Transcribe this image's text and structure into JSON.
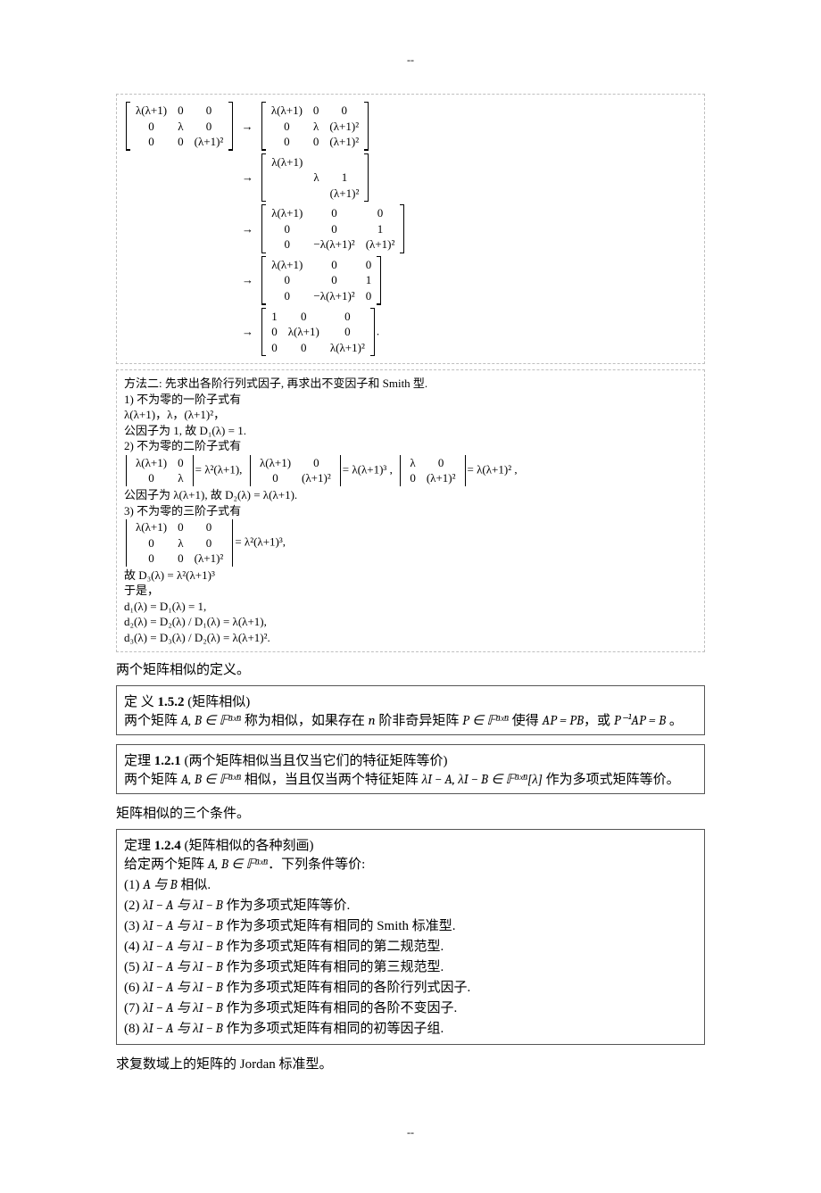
{
  "dash": "--",
  "matbox": {
    "row1": {
      "m1_r1c1": "λ(λ+1)",
      "m1_r1c2": "0",
      "m1_r1c3": "0",
      "m1_r2c1": "0",
      "m1_r2c2": "λ",
      "m1_r2c3": "0",
      "m1_r3c1": "0",
      "m1_r3c2": "0",
      "m1_r3c3": "(λ+1)²",
      "m2_r1c1": "λ(λ+1)",
      "m2_r1c2": "0",
      "m2_r1c3": "0",
      "m2_r2c1": "0",
      "m2_r2c2": "λ",
      "m2_r2c3": "(λ+1)²",
      "m2_r3c1": "0",
      "m2_r3c2": "0",
      "m2_r3c3": "(λ+1)²"
    },
    "row2": {
      "r1c1": "λ(λ+1)",
      "r1c2": "",
      "r1c3": "",
      "r2c1": "",
      "r2c2": "λ",
      "r2c3": "1",
      "r3c1": "",
      "r3c2": "",
      "r3c3": "(λ+1)²"
    },
    "row3": {
      "r1c1": "λ(λ+1)",
      "r1c2": "0",
      "r1c3": "0",
      "r2c1": "0",
      "r2c2": "0",
      "r2c3": "1",
      "r3c1": "0",
      "r3c2": "−λ(λ+1)²",
      "r3c3": "(λ+1)²"
    },
    "row4": {
      "r1c1": "λ(λ+1)",
      "r1c2": "0",
      "r1c3": "0",
      "r2c1": "0",
      "r2c2": "0",
      "r2c3": "1",
      "r3c1": "0",
      "r3c2": "−λ(λ+1)²",
      "r3c3": "0"
    },
    "row5": {
      "r1c1": "1",
      "r1c2": "0",
      "r1c3": "0",
      "r2c1": "0",
      "r2c2": "λ(λ+1)",
      "r2c3": "0",
      "r3c1": "0",
      "r3c2": "0",
      "r3c3": "λ(λ+1)²"
    },
    "arrow": "→",
    "period": "."
  },
  "method2": {
    "title": "方法二: 先求出各阶行列式因子, 再求出不变因子和 Smith 型.",
    "p1_head": "1) 不为零的一阶子式有",
    "p1_expr": "λ(λ+1)，λ，(λ+1)²，",
    "p1_conc": "公因子为 1, 故 D₁(λ) = 1.",
    "p2_head": "2) 不为零的二阶子式有",
    "d2a_r1c1": "λ(λ+1)",
    "d2a_r1c2": "0",
    "d2a_r2c1": "0",
    "d2a_r2c2": "λ",
    "d2a_eq": "= λ²(λ+1),",
    "d2b_r1c1": "λ(λ+1)",
    "d2b_r1c2": "0",
    "d2b_r2c1": "0",
    "d2b_r2c2": "(λ+1)²",
    "d2b_eq": "= λ(λ+1)³ ,",
    "d2c_r1c1": "λ",
    "d2c_r1c2": "0",
    "d2c_r2c1": "0",
    "d2c_r2c2": "(λ+1)²",
    "d2c_eq": "= λ(λ+1)² ,",
    "p2_conc": "公因子为 λ(λ+1), 故 D₂(λ) = λ(λ+1).",
    "p3_head": "3) 不为零的三阶子式有",
    "d3_r1c1": "λ(λ+1)",
    "d3_r1c2": "0",
    "d3_r1c3": "0",
    "d3_r2c1": "0",
    "d3_r2c2": "λ",
    "d3_r2c3": "0",
    "d3_r3c1": "0",
    "d3_r3c2": "0",
    "d3_r3c3": "(λ+1)²",
    "d3_eq": "= λ²(λ+1)³,",
    "p3_conc": "故 D₃(λ) = λ²(λ+1)³",
    "hence": "于是，",
    "d1": "d₁(λ) = D₁(λ) = 1,",
    "d2": "d₂(λ) = D₂(λ) / D₁(λ) = λ(λ+1),",
    "d3line": "d₃(λ) = D₃(λ) / D₂(λ) = λ(λ+1)²."
  },
  "para1": "两个矩阵相似的定义。",
  "def152": {
    "title_pre": "定 义 ",
    "title_num": "1.5.2",
    "title_post": " (矩阵相似)",
    "body_a": "两个矩阵 ",
    "AB": "A, B ∈ 𝔽ⁿˣⁿ",
    "body_b": " 称为相似，如果存在 ",
    "n": "n",
    "body_c": " 阶非奇异矩阵 ",
    "P": "P ∈ 𝔽ⁿˣⁿ",
    "body_d": " 使得 ",
    "eq1": "AP = PB",
    "body_e": "，或 ",
    "eq2": "P⁻¹AP = B",
    "body_f": " 。"
  },
  "thm121": {
    "title_pre": "定理 ",
    "title_num": "1.2.1",
    "title_post": " (两个矩阵相似当且仅当它们的特征矩阵等价)",
    "body_a": "两个矩阵 ",
    "AB": "A, B ∈ 𝔽ⁿˣⁿ",
    "body_b": " 相似，当且仅当两个特征矩阵 ",
    "expr": "λI − A, λI − B ∈ 𝔽ⁿˣⁿ[λ]",
    "body_c": " 作为多项式矩阵等价。"
  },
  "para2": "矩阵相似的三个条件。",
  "thm124": {
    "title_pre": "定理 ",
    "title_num": "1.2.4",
    "title_post": " (矩阵相似的各种刻画)",
    "lead_a": "给定两个矩阵 ",
    "AB": "A, B ∈ 𝔽ⁿˣⁿ",
    "lead_b": "．下列条件等价:",
    "i1_a": "(1)  ",
    "i1_expr": "A 与 B",
    "i1_b": " 相似.",
    "i2_a": "(2)  ",
    "i2_expr": "λI − A 与 λI − B",
    "i2_b": " 作为多项式矩阵等价.",
    "i3_a": "(3)  ",
    "i3_expr": "λI − A 与 λI − B",
    "i3_b": " 作为多项式矩阵有相同的 Smith 标准型.",
    "i4_a": "(4)  ",
    "i4_expr": "λI − A 与 λI − B",
    "i4_b": " 作为多项式矩阵有相同的第二规范型.",
    "i5_a": "(5)  ",
    "i5_expr": "λI − A 与 λI − B",
    "i5_b": " 作为多项式矩阵有相同的第三规范型.",
    "i6_a": "(6)  ",
    "i6_expr": "λI − A 与 λI − B",
    "i6_b": " 作为多项式矩阵有相同的各阶行列式因子.",
    "i7_a": "(7)  ",
    "i7_expr": "λI − A 与 λI − B",
    "i7_b": " 作为多项式矩阵有相同的各阶不变因子.",
    "i8_a": "(8)  ",
    "i8_expr": "λI − A 与 λI − B",
    "i8_b": " 作为多项式矩阵有相同的初等因子组."
  },
  "para3": "求复数域上的矩阵的 Jordan 标准型。"
}
